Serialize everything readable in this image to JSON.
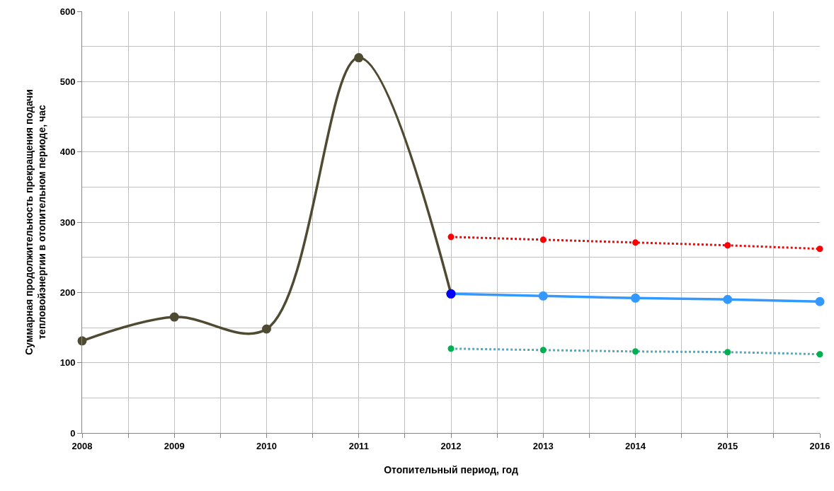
{
  "chart_data": {
    "type": "line",
    "xlabel": "Отопительный период, год",
    "ylabel": "Суммарная продолжительность прекращения подачи\nтепловойэнергии в отопительном периоде, час",
    "xlim": [
      2008,
      2016
    ],
    "xticks": [
      2008,
      {
        "value": 2008.5,
        "label": null
      },
      2009,
      {
        "value": 2009.5,
        "label": null
      },
      2010,
      {
        "value": 2010.5,
        "label": null
      },
      2011,
      {
        "value": 2011.5,
        "label": null
      },
      2012,
      {
        "value": 2012.5,
        "label": null
      },
      2013,
      {
        "value": 2013.5,
        "label": null
      },
      2014,
      {
        "value": 2014.5,
        "label": null
      },
      2015,
      {
        "value": 2015.5,
        "label": null
      },
      2016
    ],
    "ylim": [
      0,
      600
    ],
    "yticks": [
      0,
      {
        "value": 50,
        "label": null
      },
      100,
      {
        "value": 150,
        "label": null
      },
      200,
      {
        "value": 250,
        "label": null
      },
      300,
      {
        "value": 350,
        "label": null
      },
      400,
      {
        "value": 450,
        "label": null
      },
      500,
      {
        "value": 550,
        "label": null
      },
      600
    ],
    "grid": true,
    "marker": "circle",
    "series": [
      {
        "color": "#4f4a32",
        "line_style": "solid",
        "x": [
          2008,
          2009,
          2010,
          2011,
          2012
        ],
        "values": [
          131,
          165,
          148,
          534,
          198
        ]
      },
      {
        "color": "#ff0000",
        "line_style": "dotted",
        "x": [
          2012,
          2013,
          2014,
          2015,
          2016
        ],
        "values": [
          279,
          275,
          271,
          267,
          262
        ]
      },
      {
        "color": "#3399ff",
        "colors": [
          "#0000ff",
          "#3399ff",
          "#3399ff",
          "#3399ff",
          "#3399ff"
        ],
        "line_style": "solid",
        "x": [
          2012,
          2013,
          2014,
          2015,
          2016
        ],
        "values": [
          198,
          195,
          192,
          190,
          187
        ]
      },
      {
        "color": "#4bacc6",
        "colors": [
          "#00b050",
          "#00b050",
          "#00b050",
          "#00b050",
          "#00b050"
        ],
        "line_style": "dotted",
        "x": [
          2012,
          2013,
          2014,
          2015,
          2016
        ],
        "values": [
          120,
          118,
          116,
          115,
          112
        ]
      }
    ]
  }
}
